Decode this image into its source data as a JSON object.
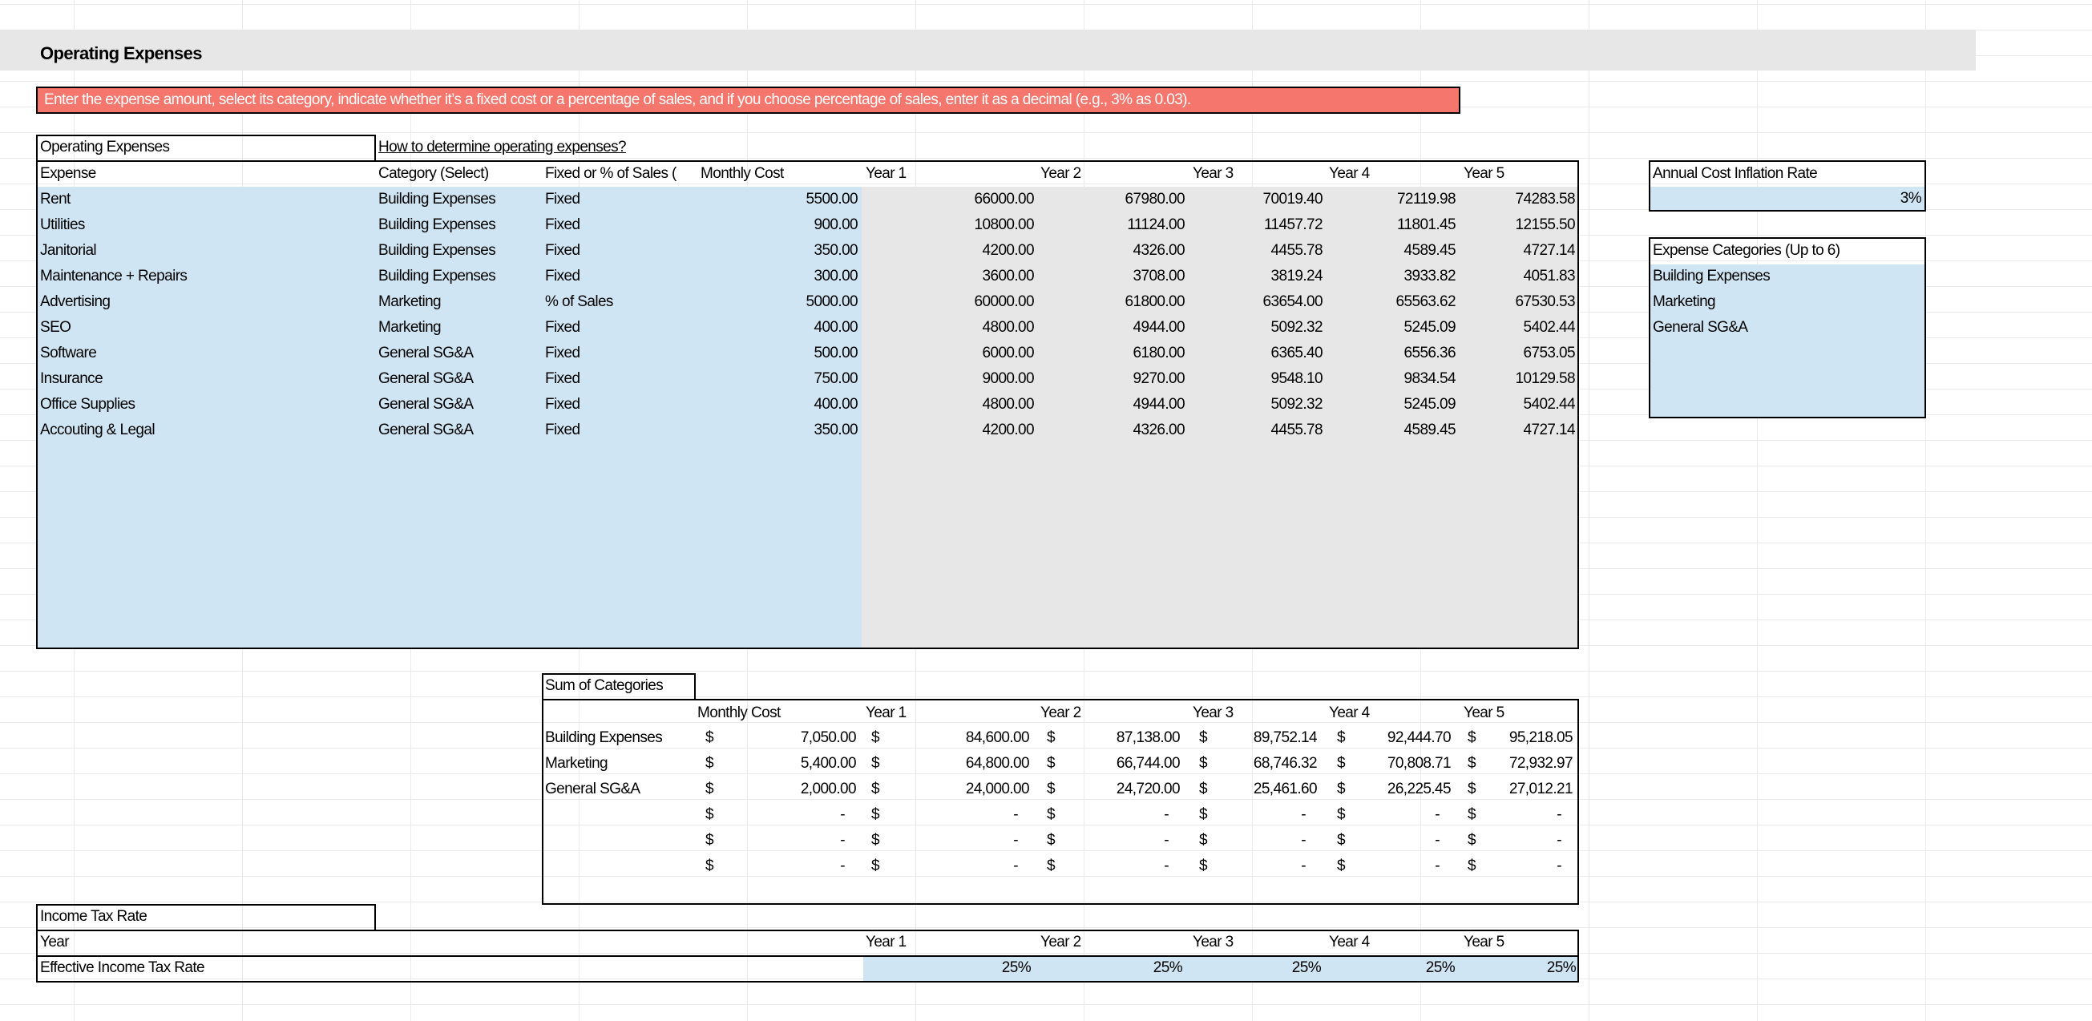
{
  "section_title": "Operating Expenses",
  "instruction_banner": "Enter the expense amount, select its category, indicate whether it’s a fixed cost or a percentage of sales, and if you choose percentage of sales, enter it as a decimal (e.g., 3% as 0.03).",
  "colors": {
    "input_fill": "#cfe5f3",
    "calc_fill": "#e7e7e7",
    "banner": "#f4766c",
    "header_band": "#e7e7e7"
  },
  "expenses_table": {
    "label": "Operating Expenses",
    "help_link": "How to determine operating expenses?",
    "headers": [
      "Expense",
      "Category (Select)",
      "Fixed or % of Sales (",
      "Monthly Cost",
      "Year 1",
      "Year 2",
      "Year 3",
      "Year 4",
      "Year 5"
    ],
    "rows": [
      [
        "Rent",
        "Building Expenses",
        "Fixed",
        "5500.00",
        "66000.00",
        "67980.00",
        "70019.40",
        "72119.98",
        "74283.58"
      ],
      [
        "Utilities",
        "Building Expenses",
        "Fixed",
        "900.00",
        "10800.00",
        "11124.00",
        "11457.72",
        "11801.45",
        "12155.50"
      ],
      [
        "Janitorial",
        "Building Expenses",
        "Fixed",
        "350.00",
        "4200.00",
        "4326.00",
        "4455.78",
        "4589.45",
        "4727.14"
      ],
      [
        "Maintenance + Repairs",
        "Building Expenses",
        "Fixed",
        "300.00",
        "3600.00",
        "3708.00",
        "3819.24",
        "3933.82",
        "4051.83"
      ],
      [
        "Advertising",
        "Marketing",
        "% of Sales",
        "5000.00",
        "60000.00",
        "61800.00",
        "63654.00",
        "65563.62",
        "67530.53"
      ],
      [
        "SEO",
        "Marketing",
        "Fixed",
        "400.00",
        "4800.00",
        "4944.00",
        "5092.32",
        "5245.09",
        "5402.44"
      ],
      [
        "Software",
        "General SG&A",
        "Fixed",
        "500.00",
        "6000.00",
        "6180.00",
        "6365.40",
        "6556.36",
        "6753.05"
      ],
      [
        "Insurance",
        "General SG&A",
        "Fixed",
        "750.00",
        "9000.00",
        "9270.00",
        "9548.10",
        "9834.54",
        "10129.58"
      ],
      [
        "Office Supplies",
        "General SG&A",
        "Fixed",
        "400.00",
        "4800.00",
        "4944.00",
        "5092.32",
        "5245.09",
        "5402.44"
      ],
      [
        "Accouting & Legal",
        "General SG&A",
        "Fixed",
        "350.00",
        "4200.00",
        "4326.00",
        "4455.78",
        "4589.45",
        "4727.14"
      ]
    ]
  },
  "inflation": {
    "label": "Annual Cost Inflation Rate",
    "value": "3%"
  },
  "categories_box": {
    "label": "Expense Categories (Up to 6)",
    "items": [
      "Building Expenses",
      "Marketing",
      "General SG&A"
    ]
  },
  "sum_table": {
    "label": "Sum of Categories",
    "headers": [
      "Monthly Cost",
      "Year 1",
      "Year 2",
      "Year 3",
      "Year 4",
      "Year 5"
    ],
    "currency": "$",
    "rows": [
      [
        "Building Expenses",
        "7,050.00",
        "84,600.00",
        "87,138.00",
        "89,752.14",
        "92,444.70",
        "95,218.05"
      ],
      [
        "Marketing",
        "5,400.00",
        "64,800.00",
        "66,744.00",
        "68,746.32",
        "70,808.71",
        "72,932.97"
      ],
      [
        "General SG&A",
        "2,000.00",
        "24,000.00",
        "24,720.00",
        "25,461.60",
        "26,225.45",
        "27,012.21"
      ],
      [
        "",
        "-",
        "-",
        "-",
        "-",
        "-",
        "-"
      ],
      [
        "",
        "-",
        "-",
        "-",
        "-",
        "-",
        "-"
      ],
      [
        "",
        "-",
        "-",
        "-",
        "-",
        "-",
        "-"
      ]
    ]
  },
  "tax_table": {
    "label": "Income Tax Rate",
    "year_label": "Year",
    "rate_label": "Effective Income Tax Rate",
    "years": [
      "Year 1",
      "Year 2",
      "Year 3",
      "Year 4",
      "Year 5"
    ],
    "rates": [
      "25%",
      "25%",
      "25%",
      "25%",
      "25%"
    ]
  }
}
